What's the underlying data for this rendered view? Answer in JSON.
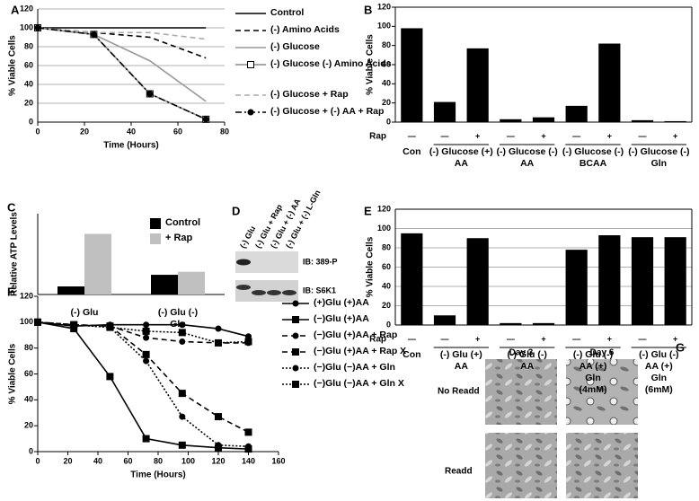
{
  "chart_data": [
    {
      "panel": "A",
      "type": "line",
      "x_label": "Time (Hours)",
      "y_label": "% Viable Cells",
      "x": [
        0,
        24,
        48,
        72
      ],
      "xlim": [
        0,
        80
      ],
      "xticks": [
        0,
        20,
        40,
        60,
        80
      ],
      "ylim": [
        0,
        120
      ],
      "yticks": [
        0,
        20,
        40,
        60,
        80,
        100,
        120
      ],
      "grid": true,
      "series": [
        {
          "name": "Control",
          "color": "#000000",
          "dash": "solid",
          "marker": "none",
          "values": [
            100,
            100,
            100,
            100
          ]
        },
        {
          "name": "(-) Amino Acids",
          "color": "#000000",
          "dash": "dashed",
          "marker": "none",
          "values": [
            100,
            95,
            90,
            68
          ]
        },
        {
          "name": "(-) Glucose",
          "color": "#999999",
          "dash": "solid",
          "marker": "none",
          "values": [
            100,
            93,
            65,
            22
          ]
        },
        {
          "name": "(-) Glucose (-) Amino Acids",
          "color": "#888888",
          "dash": "solid",
          "marker": "open-square",
          "values": [
            100,
            93,
            30,
            3
          ]
        },
        {
          "name": "(-) Glucose + Rap",
          "color": "#aaaaaa",
          "dash": "dashed",
          "marker": "none",
          "values": [
            100,
            95,
            95,
            88
          ]
        },
        {
          "name": "(-) Glucose + (-) AA + Rap",
          "color": "#000000",
          "dash": "dash-dot",
          "marker": "circle",
          "values": [
            100,
            93,
            30,
            3
          ]
        }
      ]
    },
    {
      "panel": "B",
      "type": "grouped",
      "y_label": "% Viable Cells",
      "row_label": "Rap",
      "ylim": [
        0,
        120
      ],
      "yticks": [
        0,
        20,
        40,
        60,
        80,
        100,
        120
      ],
      "grid": false,
      "color": "#000000",
      "groups": [
        {
          "label": "Con",
          "categories": [
            "—"
          ],
          "values": [
            98
          ]
        },
        {
          "label": "(-) Glucose (+) AA",
          "categories": [
            "—",
            "+"
          ],
          "values": [
            21,
            77
          ]
        },
        {
          "label": "(-) Glucose (-) AA",
          "categories": [
            "—",
            "+"
          ],
          "values": [
            3,
            5
          ]
        },
        {
          "label": "(-) Glucose (-) BCAA",
          "categories": [
            "—",
            "+"
          ],
          "values": [
            17,
            82
          ]
        },
        {
          "label": "(-) Glucose (-) Gln",
          "categories": [
            "—",
            "+"
          ],
          "values": [
            2,
            1
          ]
        }
      ]
    },
    {
      "panel": "C",
      "type": "bars",
      "y_label": "Relative ATP Levels",
      "ylim": [
        0,
        800
      ],
      "categories": [
        "(-) Glu",
        "(-) Glu (-) Gln"
      ],
      "legend": "top-right",
      "series": [
        {
          "name": "Control",
          "color": "#000000",
          "values": [
            80,
            195
          ]
        },
        {
          "name": "+ Rap",
          "color": "#c0c0c0",
          "values": [
            600,
            225
          ]
        }
      ]
    },
    {
      "panel": "E",
      "type": "grouped",
      "y_label": "% Viable Cells",
      "row_label": "Rap",
      "ylim": [
        0,
        120
      ],
      "yticks": [
        0,
        20,
        40,
        60,
        80,
        100,
        120
      ],
      "grid": true,
      "color": "#000000",
      "groups": [
        {
          "label": "Con",
          "categories": [
            "—"
          ],
          "values": [
            95
          ]
        },
        {
          "label": "(-) Glu (+) AA",
          "categories": [
            "—",
            "+"
          ],
          "values": [
            10,
            90
          ]
        },
        {
          "label": "(-) Glu (-) AA",
          "categories": [
            "—",
            "+"
          ],
          "values": [
            2,
            2
          ]
        },
        {
          "label": "(-) Glu (-) AA (+) Gln (4mM)",
          "categories": [
            "—",
            "+"
          ],
          "values": [
            78,
            93
          ]
        },
        {
          "label": "(-) Glu (-) AA (+) Gln (6mM)",
          "categories": [
            "—",
            "+"
          ],
          "values": [
            91,
            91
          ]
        }
      ]
    },
    {
      "panel": "F",
      "type": "line",
      "x_label": "Time (Hours)",
      "y_label": "% Viable Cells",
      "x": [
        0,
        24,
        48,
        72,
        96,
        120,
        140
      ],
      "xlim": [
        0,
        160
      ],
      "xticks": [
        0,
        20,
        40,
        60,
        80,
        100,
        120,
        140,
        160
      ],
      "ylim": [
        0,
        120
      ],
      "yticks": [
        0,
        20,
        40,
        60,
        80,
        100,
        120
      ],
      "grid": false,
      "series": [
        {
          "name": "(+)Glu (+)AA",
          "color": "#000000",
          "dash": "solid",
          "marker": "circle",
          "values": [
            100,
            97,
            98,
            98,
            98,
            95,
            89
          ]
        },
        {
          "name": "(−)Glu (+)AA",
          "color": "#000000",
          "dash": "solid",
          "marker": "square",
          "values": [
            100,
            95,
            58,
            10,
            5,
            3,
            2
          ]
        },
        {
          "name": "(−)Glu (+)AA + Rap",
          "color": "#000000",
          "dash": "dashed",
          "marker": "circle",
          "values": [
            100,
            98,
            97,
            88,
            85,
            84,
            84
          ]
        },
        {
          "name": "(−)Glu (+)AA + Rap X",
          "color": "#000000",
          "dash": "dashed",
          "marker": "square",
          "values": [
            100,
            98,
            97,
            75,
            45,
            27,
            15
          ]
        },
        {
          "name": "(−)Glu (−)AA + Gln",
          "color": "#000000",
          "dash": "dotted",
          "marker": "circle",
          "values": [
            100,
            98,
            96,
            70,
            27,
            5,
            4
          ]
        },
        {
          "name": "(−)Glu (−)AA + Gln X",
          "color": "#000000",
          "dash": "dotted",
          "marker": "square",
          "values": [
            100,
            98,
            96,
            93,
            92,
            84,
            85
          ]
        }
      ]
    }
  ],
  "blot": {
    "panel": "D",
    "lanes": [
      "(-) Glu",
      "(-) Glu + Rap",
      "(-) Glu + (-) AA",
      "(-) Glu + (-) L-Gln"
    ],
    "bands": [
      "IB: 389-P",
      "IB: S6K1"
    ]
  },
  "micrograph": {
    "panel": "G",
    "columns": [
      "Day 3",
      "Day 6"
    ],
    "rows": [
      "No Readd",
      "Readd"
    ]
  }
}
